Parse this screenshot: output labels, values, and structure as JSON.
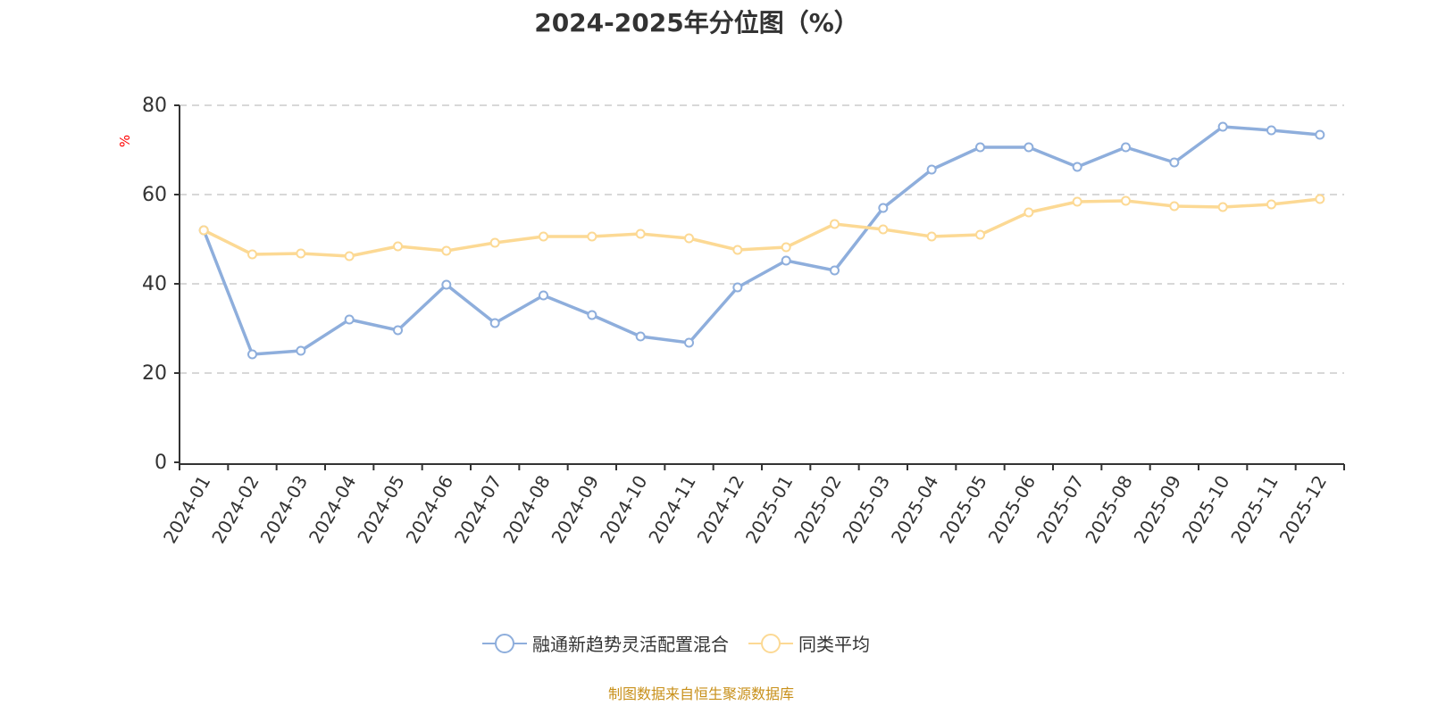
{
  "chart_data": {
    "type": "line",
    "title": "2024-2025年分位图（%）",
    "ylabel": "%",
    "xlabel": "",
    "ylim": [
      0,
      80
    ],
    "yticks": [
      0,
      20,
      40,
      60,
      80
    ],
    "grid": true,
    "legend_position": "bottom",
    "categories": [
      "2024-01",
      "2024-02",
      "2024-03",
      "2024-04",
      "2024-05",
      "2024-06",
      "2024-07",
      "2024-08",
      "2024-09",
      "2024-10",
      "2024-11",
      "2024-12",
      "2025-01",
      "2025-02",
      "2025-03",
      "2025-04",
      "2025-05",
      "2025-06",
      "2025-07",
      "2025-08",
      "2025-09",
      "2025-10",
      "2025-11",
      "2025-12"
    ],
    "series": [
      {
        "name": "融通新趋势灵活配置混合",
        "color": "#8eaedc",
        "values": [
          52.0,
          24.2,
          25.0,
          32.0,
          29.6,
          39.8,
          31.2,
          37.4,
          33.0,
          28.2,
          26.8,
          39.2,
          45.2,
          43.0,
          57.0,
          65.6,
          70.6,
          70.6,
          66.2,
          70.6,
          67.2,
          75.2,
          74.4,
          73.4
        ]
      },
      {
        "name": "同类平均",
        "color": "#fcd994",
        "values": [
          52.0,
          46.6,
          46.8,
          46.2,
          48.4,
          47.4,
          49.2,
          50.6,
          50.6,
          51.2,
          50.2,
          47.6,
          48.2,
          53.4,
          52.2,
          50.6,
          51.0,
          56.0,
          58.4,
          58.6,
          57.4,
          57.2,
          57.8,
          59.0
        ]
      }
    ]
  },
  "source": "制图数据来自恒生聚源数据库"
}
